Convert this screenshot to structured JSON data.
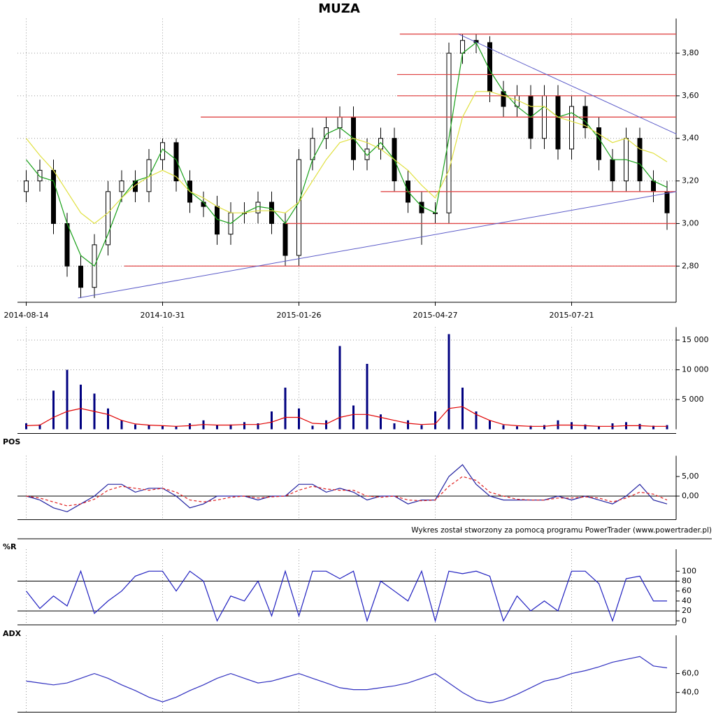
{
  "chart_data": [
    {
      "type": "candlestick",
      "title": "MUZA",
      "categories": [
        "2014-08-14",
        null,
        null,
        null,
        null,
        null,
        null,
        null,
        null,
        null,
        "2014-10-31",
        null,
        null,
        null,
        null,
        null,
        null,
        null,
        null,
        null,
        "2015-01-26",
        null,
        null,
        null,
        null,
        null,
        null,
        null,
        null,
        null,
        "2015-04-27",
        null,
        null,
        null,
        null,
        null,
        null,
        null,
        null,
        null,
        "2015-07-21",
        null,
        null,
        null,
        null,
        null,
        null,
        null
      ],
      "open": [
        3.15,
        3.2,
        3.25,
        3.0,
        2.8,
        2.7,
        2.9,
        3.15,
        3.2,
        3.15,
        3.3,
        3.38,
        3.2,
        3.1,
        3.08,
        2.95,
        3.05,
        3.05,
        3.1,
        3.0,
        2.85,
        3.3,
        3.4,
        3.45,
        3.5,
        3.3,
        3.35,
        3.4,
        3.2,
        3.1,
        3.05,
        3.05,
        3.8,
        3.86,
        3.85,
        3.62,
        3.55,
        3.6,
        3.4,
        3.6,
        3.35,
        3.55,
        3.45,
        3.3,
        3.2,
        3.4,
        3.2,
        3.15
      ],
      "high": [
        3.25,
        3.3,
        3.3,
        3.05,
        2.85,
        2.95,
        3.2,
        3.25,
        3.25,
        3.35,
        3.4,
        3.4,
        3.25,
        3.15,
        3.13,
        3.1,
        3.1,
        3.15,
        3.15,
        3.05,
        3.35,
        3.45,
        3.5,
        3.55,
        3.55,
        3.4,
        3.45,
        3.45,
        3.25,
        3.15,
        3.1,
        3.85,
        3.89,
        3.89,
        3.88,
        3.67,
        3.65,
        3.65,
        3.65,
        3.65,
        3.6,
        3.6,
        3.5,
        3.35,
        3.45,
        3.45,
        3.25,
        3.2
      ],
      "low": [
        3.1,
        3.15,
        2.95,
        2.75,
        2.65,
        2.65,
        2.85,
        3.1,
        3.1,
        3.1,
        3.25,
        3.15,
        3.05,
        3.03,
        2.9,
        2.9,
        3.0,
        3.0,
        2.95,
        2.8,
        2.8,
        3.25,
        3.35,
        3.4,
        3.25,
        3.25,
        3.3,
        3.15,
        3.05,
        2.9,
        3.0,
        3.0,
        3.75,
        3.8,
        3.57,
        3.5,
        3.5,
        3.35,
        3.35,
        3.3,
        3.3,
        3.4,
        3.25,
        3.15,
        3.15,
        3.15,
        3.1,
        2.97
      ],
      "close": [
        3.2,
        3.25,
        3.0,
        2.8,
        2.7,
        2.9,
        3.15,
        3.2,
        3.15,
        3.3,
        3.38,
        3.2,
        3.1,
        3.08,
        2.95,
        3.05,
        3.05,
        3.1,
        3.0,
        2.85,
        3.3,
        3.4,
        3.45,
        3.5,
        3.3,
        3.35,
        3.4,
        3.2,
        3.1,
        3.05,
        3.05,
        3.8,
        3.86,
        3.85,
        3.62,
        3.55,
        3.6,
        3.4,
        3.6,
        3.35,
        3.55,
        3.45,
        3.3,
        3.2,
        3.4,
        3.2,
        3.15,
        3.05
      ],
      "series": [
        {
          "color": "#18a018",
          "values": [
            3.3,
            3.22,
            3.2,
            3.0,
            2.85,
            2.8,
            2.95,
            3.12,
            3.2,
            3.22,
            3.35,
            3.3,
            3.15,
            3.1,
            3.02,
            3.0,
            3.05,
            3.08,
            3.07,
            3.0,
            3.1,
            3.3,
            3.42,
            3.45,
            3.4,
            3.32,
            3.38,
            3.3,
            3.15,
            3.08,
            3.05,
            3.4,
            3.8,
            3.85,
            3.72,
            3.62,
            3.55,
            3.5,
            3.55,
            3.5,
            3.52,
            3.48,
            3.4,
            3.3,
            3.3,
            3.28,
            3.2,
            3.17
          ]
        },
        {
          "color": "#e0e040",
          "values": [
            3.4,
            3.32,
            3.25,
            3.15,
            3.05,
            3.0,
            3.05,
            3.12,
            3.18,
            3.22,
            3.25,
            3.22,
            3.15,
            3.12,
            3.08,
            3.05,
            3.05,
            3.06,
            3.06,
            3.05,
            3.1,
            3.2,
            3.3,
            3.38,
            3.4,
            3.38,
            3.35,
            3.3,
            3.25,
            3.18,
            3.12,
            3.25,
            3.5,
            3.62,
            3.62,
            3.6,
            3.58,
            3.55,
            3.55,
            3.5,
            3.48,
            3.46,
            3.42,
            3.38,
            3.4,
            3.35,
            3.33,
            3.29
          ]
        }
      ],
      "levels": [
        {
          "value": 3.89,
          "from": 27.4
        },
        {
          "value": 3.7,
          "from": 27.2
        },
        {
          "value": 3.6,
          "from": 27.2
        },
        {
          "value": 3.5,
          "from": 12.8
        },
        {
          "value": 3.15,
          "from": 26
        },
        {
          "value": 3.0,
          "from": 19
        },
        {
          "value": 2.8,
          "from": 7.2
        }
      ],
      "level_color": "#e04848",
      "trendlines": [
        {
          "x": [
            3.8,
            47.7
          ],
          "y": [
            2.65,
            3.15
          ]
        },
        {
          "x": [
            31.7,
            47.7
          ],
          "y": [
            3.89,
            3.42
          ]
        }
      ],
      "trend_color": "#5a5ac8",
      "ylim": [
        2.63,
        3.93
      ],
      "yticks": [
        {
          "value": 2.8,
          "label": "2,80"
        },
        {
          "value": 3.0,
          "label": "3,00"
        },
        {
          "value": 3.2,
          "label": "3,20"
        },
        {
          "value": 3.4,
          "label": "3,40"
        },
        {
          "value": 3.6,
          "label": "3,60"
        },
        {
          "value": 3.8,
          "label": "3,80"
        }
      ],
      "grid": true
    },
    {
      "type": "bar",
      "color": "#000080",
      "values": [
        1000,
        800,
        6500,
        10000,
        7500,
        6000,
        3500,
        1500,
        800,
        700,
        600,
        500,
        1000,
        1500,
        700,
        800,
        1200,
        1000,
        3000,
        7000,
        3500,
        600,
        1500,
        14000,
        4000,
        11000,
        2500,
        1000,
        1500,
        700,
        3000,
        16000,
        7000,
        3000,
        1500,
        700,
        500,
        600,
        700,
        1500,
        1200,
        800,
        500,
        1000,
        1200,
        900,
        600,
        700
      ],
      "series": [
        {
          "color": "#e00000",
          "values": [
            600,
            700,
            2000,
            3000,
            3500,
            3000,
            2500,
            1500,
            900,
            700,
            600,
            500,
            600,
            800,
            700,
            700,
            800,
            800,
            1200,
            2000,
            2000,
            1000,
            900,
            2000,
            2500,
            2500,
            2000,
            1500,
            1000,
            800,
            900,
            3500,
            3800,
            2500,
            1500,
            800,
            600,
            500,
            500,
            700,
            700,
            600,
            500,
            500,
            600,
            600,
            500,
            500
          ]
        }
      ],
      "ylim": [
        0,
        16000
      ],
      "yticks": [
        {
          "value": 5000,
          "label": "5 000"
        },
        {
          "value": 10000,
          "label": "10 000"
        },
        {
          "value": 15000,
          "label": "15 000"
        }
      ],
      "grid": true
    },
    {
      "type": "line",
      "title": "POS",
      "series": [
        {
          "color": "#2020a0",
          "values": [
            0,
            -1,
            -3,
            -4,
            -2,
            0,
            3,
            3,
            1,
            2,
            2,
            0,
            -3,
            -2,
            0,
            0,
            0,
            -1,
            0,
            0,
            3,
            3,
            1,
            2,
            1,
            -1,
            0,
            0,
            -2,
            -1,
            -1,
            5,
            8,
            3,
            0,
            -1,
            -1,
            -1,
            -1,
            0,
            -1,
            0,
            -1,
            -2,
            0,
            3,
            -1,
            -2
          ]
        },
        {
          "color": "#e02020",
          "dashed": true,
          "values": [
            0,
            -0.5,
            -1.5,
            -2.5,
            -2,
            -0.8,
            1.5,
            2.5,
            2,
            1.5,
            2,
            1,
            -1,
            -1.5,
            -1,
            -0.3,
            0,
            -0.5,
            -0.2,
            0,
            1.5,
            2.5,
            1.8,
            1.5,
            1.5,
            0,
            -0.3,
            0,
            -1,
            -1.2,
            -1,
            2.5,
            5,
            4,
            1,
            0,
            -0.8,
            -1,
            -1,
            -0.5,
            -0.5,
            -0.2,
            -0.5,
            -1.5,
            -0.5,
            1,
            0.5,
            -1
          ]
        }
      ],
      "hlines": [
        0
      ],
      "ylim": [
        -6,
        8.5
      ],
      "yticks": [
        {
          "value": 0,
          "label": "0,00"
        },
        {
          "value": 5,
          "label": "5,00"
        }
      ],
      "annotation": "Wykres został stworzony za pomocą programu PowerTrader (www.powertrader.pl)"
    },
    {
      "type": "line",
      "title": "%R",
      "series": [
        {
          "color": "#2020c0",
          "values": [
            60,
            25,
            50,
            30,
            100,
            15,
            40,
            60,
            90,
            100,
            100,
            60,
            100,
            80,
            0,
            50,
            40,
            80,
            10,
            100,
            10,
            100,
            100,
            85,
            100,
            0,
            80,
            60,
            40,
            100,
            0,
            100,
            95,
            100,
            90,
            0,
            50,
            20,
            40,
            20,
            100,
            100,
            75,
            0,
            85,
            90,
            40,
            40
          ]
        }
      ],
      "hlines": [
        20,
        80
      ],
      "ylim": [
        -8,
        130
      ],
      "yticks": [
        0,
        20,
        40,
        60,
        80,
        100
      ]
    },
    {
      "type": "line",
      "title": "ADX",
      "series": [
        {
          "color": "#3030c0",
          "values": [
            52,
            50,
            48,
            50,
            55,
            60,
            55,
            48,
            42,
            35,
            30,
            35,
            42,
            48,
            55,
            60,
            55,
            50,
            52,
            56,
            60,
            55,
            50,
            45,
            43,
            43,
            45,
            47,
            50,
            55,
            60,
            50,
            40,
            32,
            29,
            32,
            38,
            45,
            52,
            55,
            60,
            63,
            67,
            72,
            75,
            78,
            68,
            66
          ]
        }
      ],
      "ylim": [
        19,
        93
      ],
      "yticks": [
        {
          "value": 40,
          "label": "40,0"
        },
        {
          "value": 60,
          "label": "60,0"
        }
      ]
    }
  ]
}
